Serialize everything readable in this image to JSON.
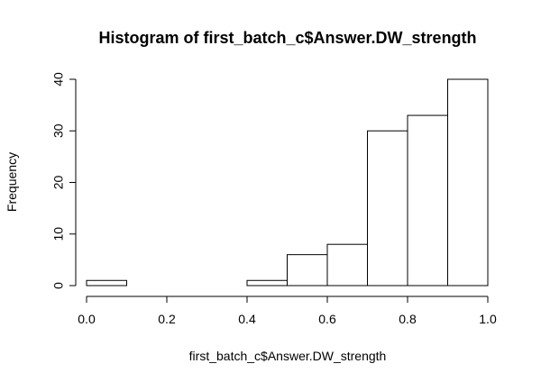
{
  "chart_data": {
    "type": "bar",
    "title": "Histogram of first_batch_c$Answer.DW_strength",
    "xlabel": "first_batch_c$Answer.DW_strength",
    "ylabel": "Frequency",
    "x_bins": [
      [
        0.0,
        0.1
      ],
      [
        0.1,
        0.2
      ],
      [
        0.2,
        0.3
      ],
      [
        0.3,
        0.4
      ],
      [
        0.4,
        0.5
      ],
      [
        0.5,
        0.6
      ],
      [
        0.6,
        0.7
      ],
      [
        0.7,
        0.8
      ],
      [
        0.8,
        0.9
      ],
      [
        0.9,
        1.0
      ]
    ],
    "values": [
      1,
      0,
      0,
      0,
      1,
      6,
      8,
      30,
      33,
      40
    ],
    "xlim": [
      0.0,
      1.0
    ],
    "ylim": [
      0,
      40
    ],
    "x_ticks": [
      0.0,
      0.2,
      0.4,
      0.6,
      0.8,
      1.0
    ],
    "x_tick_labels": [
      "0.0",
      "0.2",
      "0.4",
      "0.6",
      "0.8",
      "1.0"
    ],
    "y_ticks": [
      0,
      10,
      20,
      30,
      40
    ],
    "y_tick_labels": [
      "0",
      "10",
      "20",
      "30",
      "40"
    ],
    "grid": false,
    "legend": "none",
    "colors": {
      "bar_fill": "#ffffff",
      "bar_stroke": "#000000",
      "axis": "#000000",
      "text": "#000000"
    }
  }
}
